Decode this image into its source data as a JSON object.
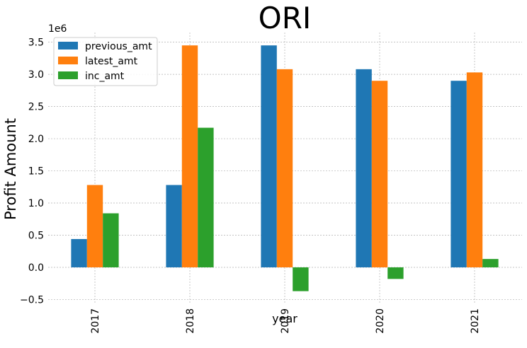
{
  "chart_data": {
    "type": "bar",
    "title": "ORI",
    "xlabel": "year",
    "ylabel": "Profit Amount",
    "y_offset_text": "1e6",
    "categories": [
      "2017",
      "2018",
      "2019",
      "2020",
      "2021"
    ],
    "series": [
      {
        "name": "previous_amt",
        "color": "#1f77b4",
        "values": [
          440000,
          1280000,
          3450000,
          3080000,
          2900000
        ]
      },
      {
        "name": "latest_amt",
        "color": "#ff7f0e",
        "values": [
          1280000,
          3450000,
          3080000,
          2900000,
          3030000
        ]
      },
      {
        "name": "inc_amt",
        "color": "#2ca02c",
        "values": [
          840000,
          2170000,
          -370000,
          -180000,
          130000
        ]
      }
    ],
    "ylim": [
      -550000,
      3650000
    ],
    "yticks": [
      -0.5,
      0.0,
      0.5,
      1.0,
      1.5,
      2.0,
      2.5,
      3.0,
      3.5
    ],
    "ytick_labels": [
      "−0.5",
      "0.0",
      "0.5",
      "1.0",
      "1.5",
      "2.0",
      "2.5",
      "3.0",
      "3.5"
    ],
    "ytick_scale": 1000000,
    "grid": true,
    "legend_position": "top-left"
  }
}
